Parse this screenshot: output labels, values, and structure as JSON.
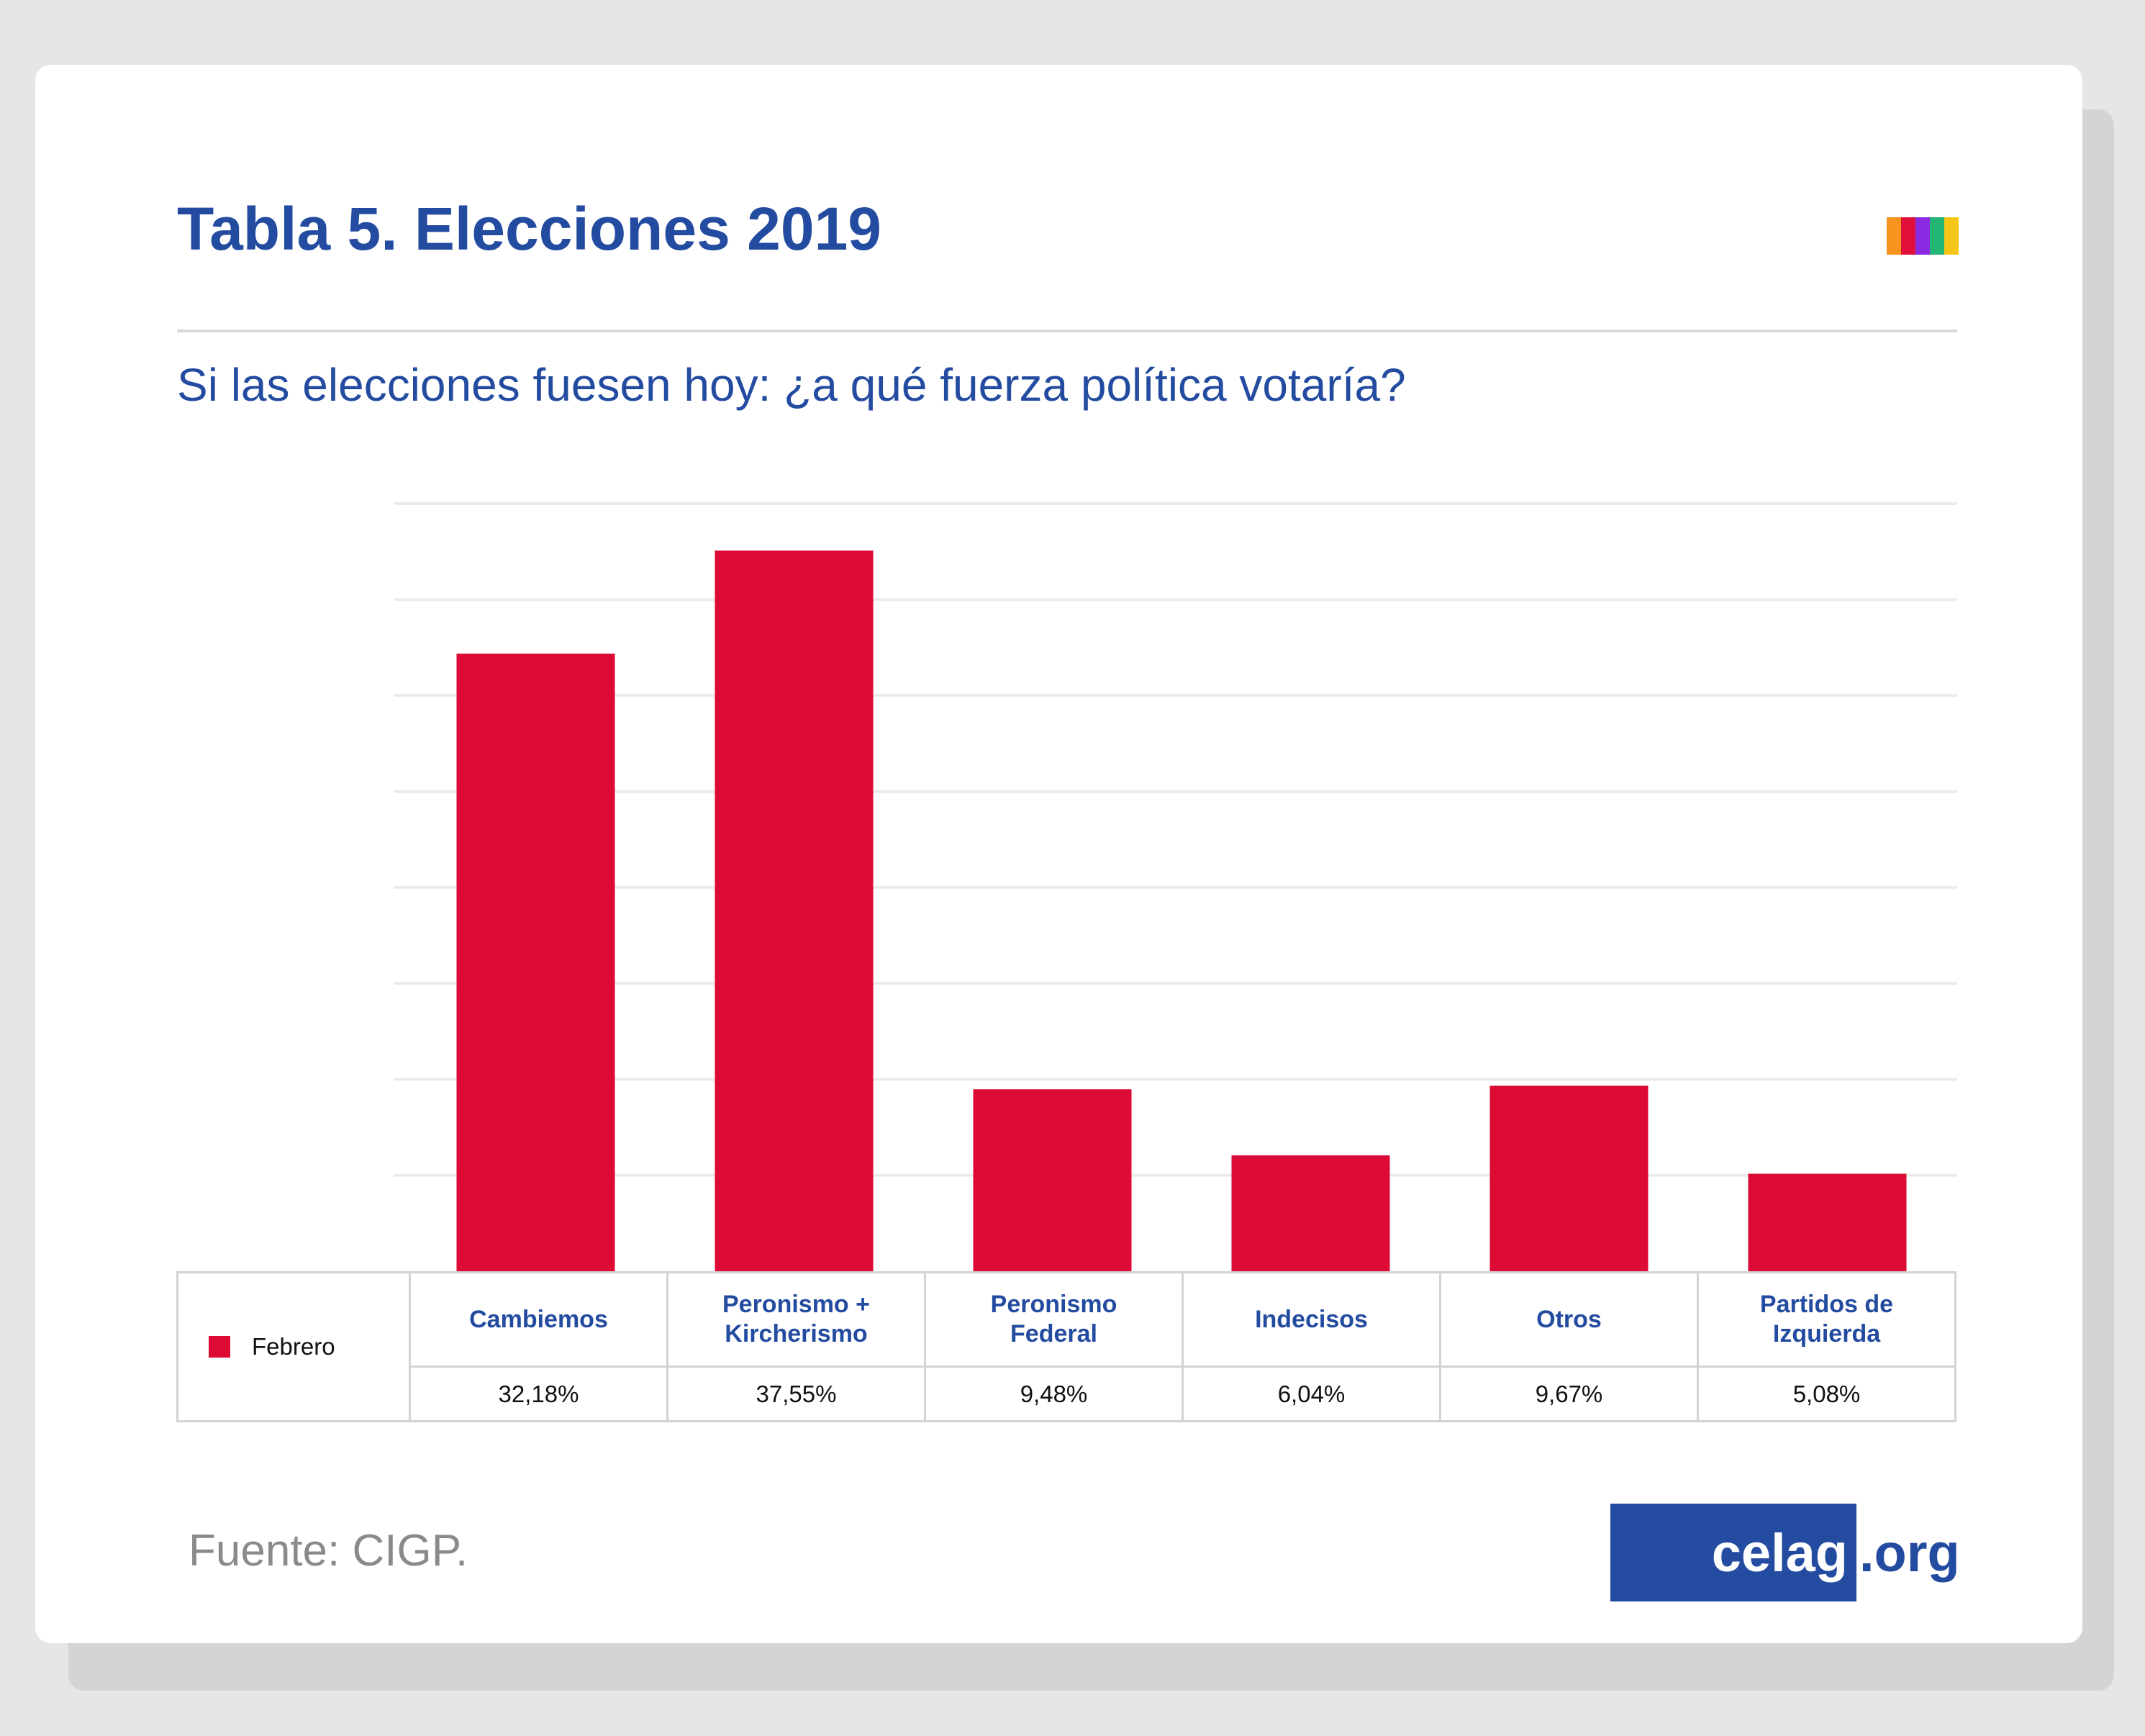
{
  "header": {
    "title": "Tabla 5. Elecciones 2019",
    "subtitle": "Si las elecciones fuesen hoy: ¿a qué fuerza política votaría?"
  },
  "brand_colors": [
    "#f7941d",
    "#e0103a",
    "#8a2be2",
    "#22b573",
    "#f5c518"
  ],
  "colors": {
    "accent": "#234ba0",
    "bar": "#dd0a35",
    "grid": "#ebebeb"
  },
  "chart_data": {
    "type": "bar",
    "title": "Si las elecciones fuesen hoy: ¿a qué fuerza política votaría?",
    "xlabel": "",
    "ylabel": "",
    "ylim": [
      0,
      40
    ],
    "grid": true,
    "legend": "bottom-left",
    "categories": [
      "Cambiemos",
      "Peronismo +\nKircherismo",
      "Peronismo\nFederal",
      "Indecisos",
      "Otros",
      "Partidos de\nIzquierda"
    ],
    "series": [
      {
        "name": "Febrero",
        "color": "#dd0a35",
        "values": [
          32.18,
          37.55,
          9.48,
          6.04,
          9.67,
          5.08
        ]
      }
    ],
    "value_labels": [
      "32,18%",
      "37,55%",
      "9,48%",
      "6,04%",
      "9,67%",
      "5,08%"
    ]
  },
  "footer": {
    "source": "Fuente: CIGP.",
    "logo_main": "celag",
    "logo_tld": ".org"
  }
}
